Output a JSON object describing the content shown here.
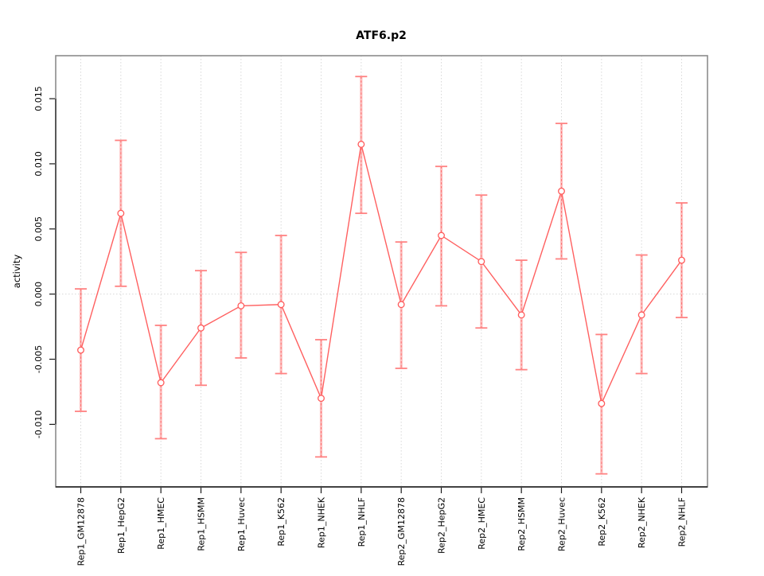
{
  "chart_data": {
    "type": "line",
    "title": "ATF6.p2",
    "xlabel": "",
    "ylabel": "activity",
    "legend": "none",
    "grid": "vertical dotted gridlines at each category; dotted horizontal line at y=0",
    "categories": [
      "Rep1_GM12878",
      "Rep1_HepG2",
      "Rep1_HMEC",
      "Rep1_HSMM",
      "Rep1_Huvec",
      "Rep1_K562",
      "Rep1_NHEK",
      "Rep1_NHLF",
      "Rep2_GM12878",
      "Rep2_HepG2",
      "Rep2_HMEC",
      "Rep2_HSMM",
      "Rep2_Huvec",
      "Rep2_K562",
      "Rep2_NHEK",
      "Rep2_NHLF"
    ],
    "series": [
      {
        "name": "activity",
        "marker": "open-circle",
        "values": [
          -0.0043,
          0.0062,
          -0.0068,
          -0.0026,
          -0.0009,
          -0.0008,
          -0.008,
          0.0115,
          -0.0008,
          0.0045,
          0.0025,
          -0.0016,
          0.0079,
          -0.0084,
          -0.0016,
          0.0026
        ],
        "upper": [
          0.0004,
          0.0118,
          -0.0024,
          0.0018,
          0.0032,
          0.0045,
          -0.0035,
          0.0167,
          0.004,
          0.0098,
          0.0076,
          0.0026,
          0.0131,
          -0.0031,
          0.003,
          0.007
        ],
        "lower": [
          -0.009,
          0.0006,
          -0.0111,
          -0.007,
          -0.0049,
          -0.0061,
          -0.0125,
          0.0062,
          -0.0057,
          -0.0009,
          -0.0026,
          -0.0058,
          0.0027,
          -0.0138,
          -0.0061,
          -0.0018
        ]
      }
    ],
    "yticks": [
      0.015,
      0.01,
      0.005,
      0.0,
      -0.005,
      -0.01
    ],
    "ytick_labels": [
      "0.015",
      "0.010",
      "0.005",
      "0.000",
      "-0.005",
      "-0.010"
    ],
    "ylim": [
      -0.0148,
      0.0183
    ],
    "colors": {
      "series": "#ff6060",
      "point": "#ff5a5a",
      "error_bar_shaft": "#ff7070",
      "error_bar_cap": "#ff8282",
      "grid_line": "#d8d8d8",
      "plot_border": "#8c8c8c",
      "axis": "#1a1a1a",
      "background": "#ffffff"
    }
  }
}
